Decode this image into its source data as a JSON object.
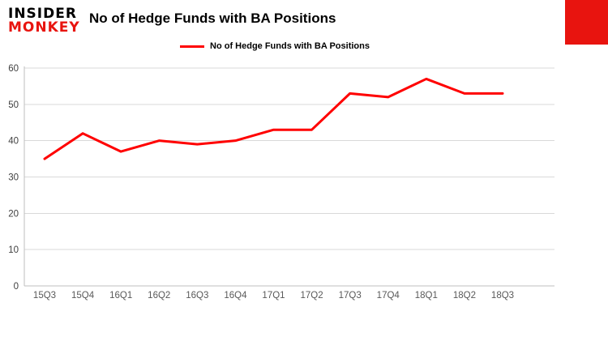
{
  "branding": {
    "logo_line1": "INSIDER",
    "logo_line2": "MONKEY"
  },
  "title": "No of Hedge Funds with BA Positions",
  "legend": {
    "label": "No of Hedge Funds with BA Positions"
  },
  "colors": {
    "line_red": "#ff0000",
    "brand_red": "#e8140f",
    "grid": "#d9d9d9",
    "axis": "#bfbfbf",
    "tick_text": "#404040",
    "xlabel_text": "#595959"
  },
  "chart_data": {
    "type": "line",
    "title": "No of Hedge Funds with BA Positions",
    "categories": [
      "15Q3",
      "15Q4",
      "16Q1",
      "16Q2",
      "16Q3",
      "16Q4",
      "17Q1",
      "17Q2",
      "17Q3",
      "17Q4",
      "18Q1",
      "18Q2",
      "18Q3"
    ],
    "series": [
      {
        "name": "No of Hedge Funds with BA Positions",
        "color": "#ff0000",
        "values": [
          35,
          42,
          37,
          40,
          39,
          40,
          43,
          43,
          53,
          52,
          57,
          53,
          53
        ]
      }
    ],
    "xlabel": "",
    "ylabel": "",
    "ylim": [
      0,
      60
    ],
    "yticks": [
      0,
      10,
      20,
      30,
      40,
      50,
      60
    ],
    "grid": true,
    "legend_position": "top-left"
  }
}
